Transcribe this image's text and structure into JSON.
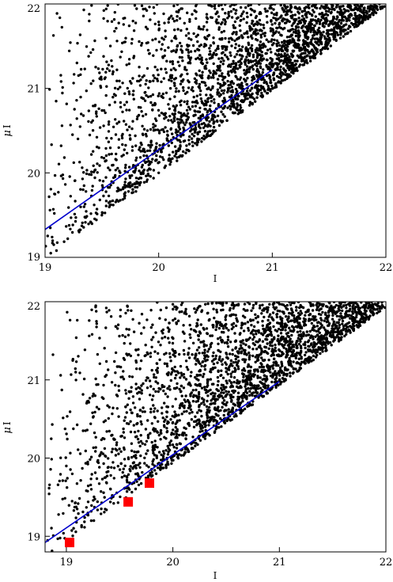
{
  "chart_data": [
    {
      "type": "scatter",
      "xlabel": "I",
      "ylabel_symbol": "μ",
      "ylabel_rest": "I",
      "xlim": [
        19,
        22
      ],
      "ylim": [
        19,
        22
      ],
      "xticks": [
        "19",
        "20",
        "21",
        "22"
      ],
      "yticks": [
        "19",
        "20",
        "21",
        "22"
      ],
      "scatter_note": "dense cloud bounded below by edge y = x - 0.0",
      "fit_line": {
        "x": [
          19,
          21
        ],
        "y": [
          19.33,
          21.22
        ],
        "color": "#0000cc"
      },
      "highlight_points": [],
      "point_color": "#000000",
      "cloud": {
        "n": 2600,
        "seed": 11,
        "lower_edge_offset": 0.0,
        "edge_points": [
          [
            19.05,
            19.05
          ],
          [
            19.1,
            19.08
          ],
          [
            19.2,
            19.22
          ],
          [
            19.3,
            19.3
          ],
          [
            19.4,
            19.42
          ],
          [
            19.5,
            19.5
          ],
          [
            19.6,
            19.62
          ],
          [
            19.7,
            19.7
          ],
          [
            19.8,
            19.78
          ],
          [
            19.9,
            19.92
          ],
          [
            20.0,
            20.0
          ],
          [
            20.1,
            20.1
          ],
          [
            20.2,
            20.2
          ],
          [
            20.3,
            20.32
          ],
          [
            20.4,
            20.4
          ],
          [
            20.5,
            20.5
          ],
          [
            20.6,
            20.62
          ],
          [
            20.7,
            20.7
          ],
          [
            20.8,
            20.8
          ]
        ]
      }
    },
    {
      "type": "scatter",
      "xlabel": "I",
      "ylabel_symbol": "μ",
      "ylabel_rest": "I",
      "xlim": [
        18.8,
        22
      ],
      "ylim": [
        18.8,
        22
      ],
      "xticks": [
        "19",
        "20",
        "21",
        "22"
      ],
      "yticks": [
        "19",
        "20",
        "21",
        "22"
      ],
      "fit_line": {
        "x": [
          18.8,
          21
        ],
        "y": [
          18.92,
          20.98
        ],
        "color": "#0000cc"
      },
      "highlight_points": [
        {
          "x": 19.03,
          "y": 18.92,
          "color": "#ff0000"
        },
        {
          "x": 19.58,
          "y": 19.44,
          "color": "#ff0000"
        },
        {
          "x": 19.78,
          "y": 19.68,
          "color": "#ff0000"
        }
      ],
      "point_color": "#000000",
      "cloud": {
        "n": 2600,
        "seed": 29,
        "lower_edge_offset": -0.05,
        "edge_points": []
      }
    }
  ]
}
